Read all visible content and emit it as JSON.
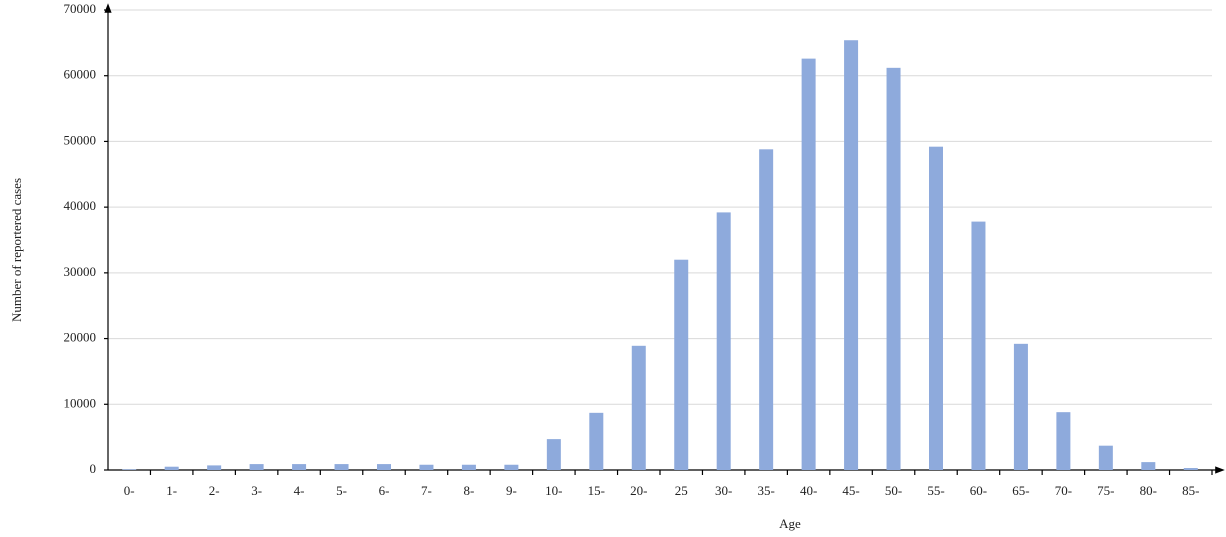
{
  "chart_data": {
    "type": "bar",
    "xlabel": "Age",
    "ylabel": "Number of reportered cases",
    "categories": [
      "0-",
      "1-",
      "2-",
      "3-",
      "4-",
      "5-",
      "6-",
      "7-",
      "8-",
      "9-",
      "10-",
      "15-",
      "20-",
      "25",
      "30-",
      "35-",
      "40-",
      "45-",
      "50-",
      "55-",
      "60-",
      "65-",
      "70-",
      "75-",
      "80-",
      "85-"
    ],
    "values": [
      100,
      500,
      700,
      900,
      900,
      900,
      900,
      800,
      800,
      800,
      4700,
      8700,
      18900,
      32000,
      39200,
      48800,
      62600,
      65400,
      61200,
      49200,
      37800,
      19200,
      8800,
      3700,
      1200,
      300
    ],
    "color": "#8eaadc",
    "ylim": [
      0,
      70000
    ],
    "yticks": [
      0,
      10000,
      20000,
      30000,
      40000,
      50000,
      60000,
      70000
    ],
    "grid": true
  }
}
